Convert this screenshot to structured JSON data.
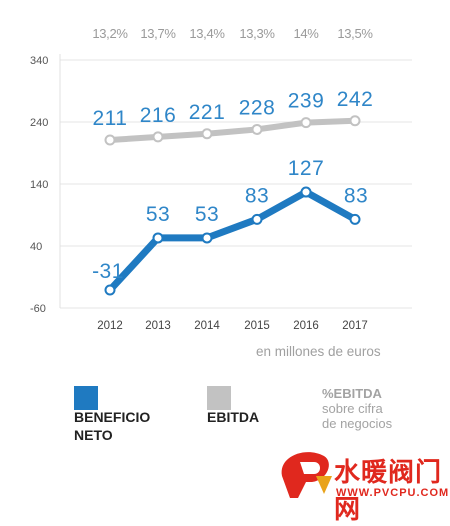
{
  "chart_data": {
    "type": "line",
    "categories": [
      "2012",
      "2013",
      "2014",
      "2015",
      "2016",
      "2017"
    ],
    "series": [
      {
        "name": "BENEFICIO NETO",
        "values": [
          -31,
          53,
          53,
          83,
          127,
          83
        ],
        "color": "#1f7ac1"
      },
      {
        "name": "EBITDA",
        "values": [
          211,
          216,
          221,
          228,
          239,
          242
        ],
        "color": "#c2c2c2"
      }
    ],
    "value_labels": {
      "BENEFICIO NETO": [
        "-31",
        "53",
        "53",
        "83",
        "127",
        "83"
      ],
      "EBITDA": [
        "211",
        "216",
        "221",
        "228",
        "239",
        "242"
      ]
    },
    "ebitda_margin_pct": [
      "13,2%",
      "13,7%",
      "13,4%",
      "13,3%",
      "14%",
      "13,5%"
    ],
    "yticks": [
      "340",
      "240",
      "140",
      "40",
      "-60"
    ],
    "ylim": [
      -60,
      340
    ],
    "grid": true,
    "unit_note": "en millones de euros"
  },
  "legend": {
    "net": {
      "line1": "BENEFICIO",
      "line2": "NETO",
      "color": "#1f7ac1"
    },
    "ebitda": {
      "line1": "EBITDA",
      "color": "#c2c2c2"
    },
    "pct": {
      "line1": "%EBITDA",
      "line2": "sobre cifra",
      "line3": "de negocios"
    }
  },
  "watermark": {
    "text": "水暖阀门网",
    "url": "WWW.PVCPU.COM"
  }
}
